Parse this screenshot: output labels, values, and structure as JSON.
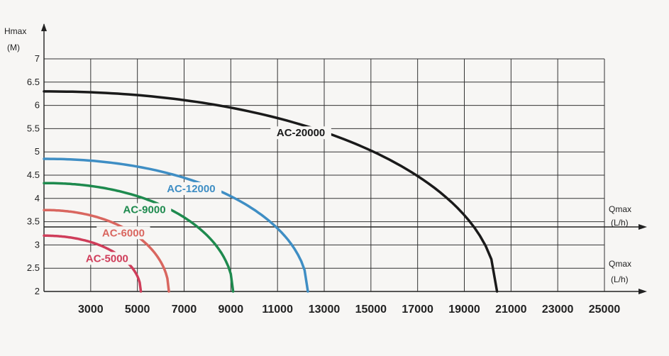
{
  "chart_data": {
    "type": "line",
    "ylabel": "Hmax",
    "yunit": "(M)",
    "xlabel": "Qmax",
    "xunit": "(L/h)",
    "xlim": [
      1000,
      25000
    ],
    "ylim": [
      2,
      7
    ],
    "x_ticks": [
      3000,
      5000,
      7000,
      9000,
      11000,
      13000,
      15000,
      17000,
      19000,
      21000,
      23000,
      25000
    ],
    "x_tick_labels": [
      "3000",
      "5000",
      "7000",
      "9000",
      "11000",
      "13000",
      "15000",
      "17000",
      "19000",
      "21000",
      "23000",
      "25000"
    ],
    "y_ticks": [
      2,
      2.5,
      3,
      3.5,
      4,
      4.5,
      5,
      5.5,
      6,
      6.5,
      7
    ],
    "y_tick_labels": [
      "2",
      "2.5",
      "3",
      "3.5",
      "4",
      "4.5",
      "5",
      "5.5",
      "6",
      "6.5",
      "7"
    ],
    "x_grid_step": 2000,
    "grid": true,
    "series": [
      {
        "name": "AC-20000",
        "color": "#1a1a1a",
        "qmax": 20400,
        "hmax": 6.3,
        "label_x": 12000,
        "label_y": 5.35
      },
      {
        "name": "AC-12000",
        "color": "#3f8ec4",
        "qmax": 12300,
        "hmax": 4.85,
        "label_x": 7300,
        "label_y": 4.15
      },
      {
        "name": "AC-9000",
        "color": "#1e8a4e",
        "qmax": 9100,
        "hmax": 4.33,
        "label_x": 5300,
        "label_y": 3.7
      },
      {
        "name": "AC-6000",
        "color": "#d9665f",
        "qmax": 6350,
        "hmax": 3.75,
        "label_x": 4400,
        "label_y": 3.2
      },
      {
        "name": "AC-5000",
        "color": "#cf3d5a",
        "qmax": 5150,
        "hmax": 3.2,
        "label_x": 3700,
        "label_y": 2.65
      }
    ]
  }
}
